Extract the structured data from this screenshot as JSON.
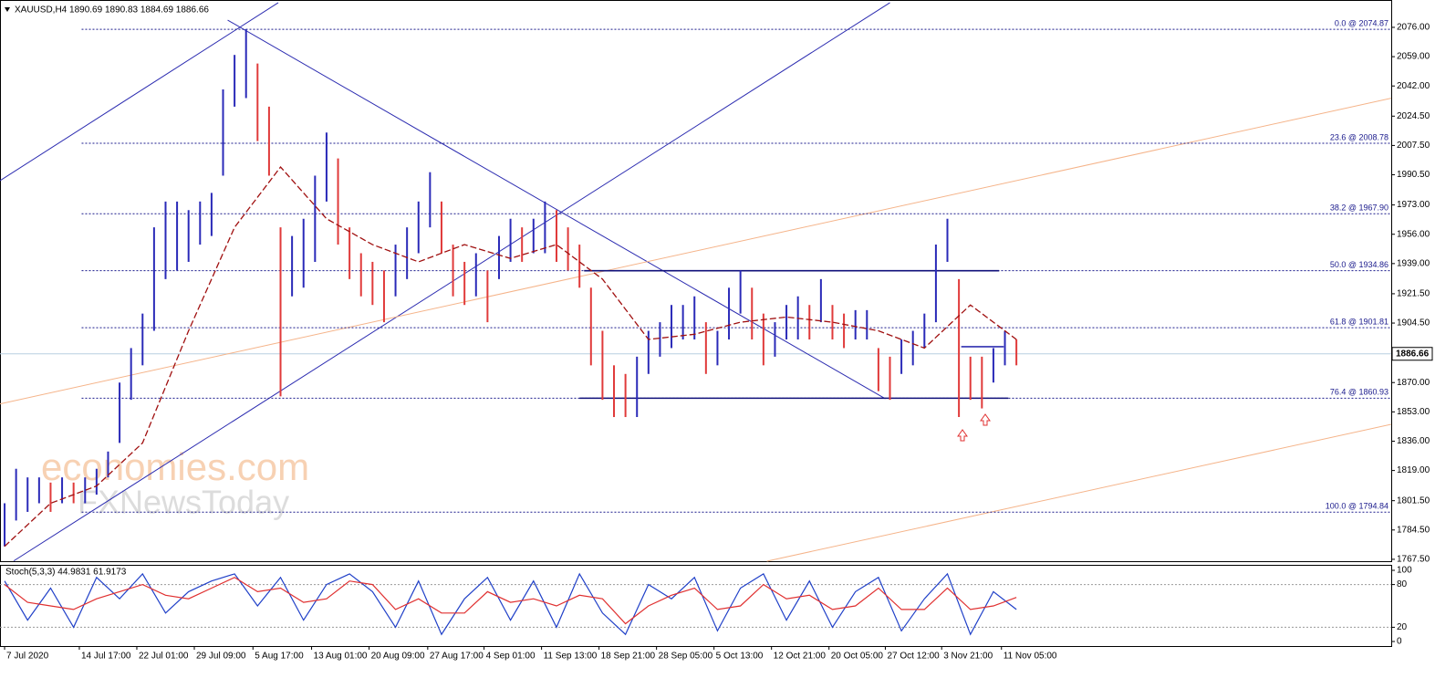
{
  "chart_data": [
    {
      "type": "hilo",
      "header": "XAUUSD,H4  1890.69 1890.83 1884.69 1886.66",
      "watermark": [
        "economies.com",
        "FXNewsToday"
      ],
      "xlim": [
        -0.4,
        120.6
      ],
      "ylim": [
        1766.4,
        2090.8
      ],
      "yticks": [
        {
          "value": 2076,
          "label": "2076.00"
        },
        {
          "value": 2059,
          "label": "2059.00"
        },
        {
          "value": 2042,
          "label": "2042.00"
        },
        {
          "value": 2024.5,
          "label": "2024.50"
        },
        {
          "value": 2007.5,
          "label": "2007.50"
        },
        {
          "value": 1990.5,
          "label": "1990.50"
        },
        {
          "value": 1973,
          "label": "1973.00"
        },
        {
          "value": 1956,
          "label": "1956.00"
        },
        {
          "value": 1939,
          "label": "1939.00"
        },
        {
          "value": 1921.5,
          "label": "1921.50"
        },
        {
          "value": 1904.5,
          "label": "1904.50"
        },
        {
          "value": 1870,
          "label": "1870.00"
        },
        {
          "value": 1853,
          "label": "1853.00"
        },
        {
          "value": 1836,
          "label": "1836.00"
        },
        {
          "value": 1819,
          "label": "1819.00"
        },
        {
          "value": 1801.5,
          "label": "1801.50"
        },
        {
          "value": 1784.5,
          "label": "1784.50"
        },
        {
          "value": 1767.5,
          "label": "1767.50"
        }
      ],
      "xticks": [
        {
          "value": 0,
          "label": "7 Jul 2020"
        },
        {
          "value": 6.5,
          "label": "14 Jul 17:00"
        },
        {
          "value": 11.5,
          "label": "22 Jul 01:00"
        },
        {
          "value": 16.5,
          "label": "29 Jul 09:00"
        },
        {
          "value": 21.6,
          "label": "5 Aug 17:00"
        },
        {
          "value": 26.7,
          "label": "13 Aug 01:00"
        },
        {
          "value": 31.7,
          "label": "20 Aug 09:00"
        },
        {
          "value": 36.8,
          "label": "27 Aug 17:00"
        },
        {
          "value": 41.7,
          "label": "4 Sep 01:00"
        },
        {
          "value": 46.7,
          "label": "11 Sep 13:00"
        },
        {
          "value": 51.7,
          "label": "18 Sep 21:00"
        },
        {
          "value": 56.7,
          "label": "28 Sep 05:00"
        },
        {
          "value": 61.7,
          "label": "5 Oct 13:00"
        },
        {
          "value": 66.7,
          "label": "12 Oct 21:00"
        },
        {
          "value": 71.7,
          "label": "20 Oct 05:00"
        },
        {
          "value": 76.6,
          "label": "27 Oct 12:00"
        },
        {
          "value": 81.5,
          "label": "3 Nov 21:00"
        },
        {
          "value": 86.7,
          "label": "11 Nov 05:00"
        }
      ],
      "up_color": "#2a2ab8",
      "down_color": "#e03a3a",
      "high": [
        1800,
        1820,
        1815,
        1815,
        1812,
        1815,
        1812,
        1815,
        1820,
        1830,
        1870,
        1890,
        1910,
        1960,
        1975,
        1975,
        1970,
        1975,
        1980,
        2040,
        2060,
        2075,
        2055,
        2030,
        1960,
        1955,
        1965,
        1990,
        2015,
        2000,
        1960,
        1945,
        1940,
        1935,
        1950,
        1960,
        1975,
        1992,
        1975,
        1950,
        1940,
        1945,
        1935,
        1955,
        1965,
        1960,
        1965,
        1975,
        1970,
        1960,
        1950,
        1925,
        1900,
        1880,
        1875,
        1885,
        1900,
        1905,
        1915,
        1915,
        1920,
        1905,
        1900,
        1925,
        1935,
        1925,
        1910,
        1905,
        1915,
        1920,
        1915,
        1930,
        1915,
        1910,
        1912,
        1912,
        1890,
        1885,
        1895,
        1900,
        1910,
        1950,
        1965,
        1930,
        1885,
        1885,
        1890,
        1900,
        1895
      ],
      "low": [
        1775,
        1790,
        1795,
        1800,
        1795,
        1800,
        1800,
        1800,
        1805,
        1815,
        1835,
        1860,
        1880,
        1900,
        1930,
        1935,
        1940,
        1950,
        1955,
        1990,
        2030,
        2035,
        2010,
        1990,
        1862,
        1920,
        1925,
        1940,
        1975,
        1950,
        1930,
        1920,
        1915,
        1905,
        1920,
        1930,
        1945,
        1960,
        1945,
        1920,
        1915,
        1920,
        1905,
        1930,
        1940,
        1940,
        1945,
        1945,
        1940,
        1935,
        1925,
        1880,
        1860,
        1850,
        1850,
        1850,
        1875,
        1885,
        1890,
        1895,
        1895,
        1875,
        1880,
        1895,
        1910,
        1895,
        1880,
        1885,
        1895,
        1895,
        1895,
        1905,
        1895,
        1890,
        1895,
        1895,
        1865,
        1860,
        1875,
        1880,
        1890,
        1905,
        1940,
        1850,
        1860,
        1855,
        1870,
        1880,
        1880
      ],
      "ma_color": "#a01010",
      "ma_x": [
        0,
        4,
        8,
        12,
        16,
        20,
        24,
        28,
        32,
        36,
        40,
        44,
        48,
        52,
        56,
        60,
        64,
        68,
        72,
        76,
        80,
        84,
        88
      ],
      "ma_values": [
        1775,
        1800,
        1810,
        1835,
        1900,
        1960,
        1995,
        1965,
        1950,
        1940,
        1950,
        1942,
        1950,
        1930,
        1895,
        1898,
        1905,
        1908,
        1905,
        1900,
        1890,
        1915,
        1895
      ],
      "fib_color": "#1a1a8c",
      "fib_x_start": 6.7,
      "fib_levels": [
        {
          "value": 2074.87,
          "label": "0.0 @ 2074.87"
        },
        {
          "value": 2008.78,
          "label": "23.6 @ 2008.78"
        },
        {
          "value": 1967.9,
          "label": "38.2 @ 1967.90"
        },
        {
          "value": 1934.86,
          "label": "50.0 @ 1934.86"
        },
        {
          "value": 1901.81,
          "label": "61.8 @ 1901.81"
        },
        {
          "value": 1860.93,
          "label": "76.4 @ 1860.93"
        },
        {
          "value": 1794.84,
          "label": "100.0 @ 1794.84"
        }
      ],
      "trendlines": [
        {
          "color": "#2b2bb0",
          "x": [
            -0.4,
            23.8
          ],
          "y": [
            1987.1,
            2090.3
          ]
        },
        {
          "color": "#2b2bb0",
          "x": [
            0.8,
            77
          ],
          "y": [
            1766.6,
            2090.3
          ]
        },
        {
          "color": "#2b2bb0",
          "x": [
            19.4,
            76.6
          ],
          "y": [
            2080.2,
            1860.6
          ]
        },
        {
          "color": "#f5b48a",
          "x": [
            -0.4,
            120.6
          ],
          "y": [
            1857.6,
            2034.9
          ]
        },
        {
          "color": "#f5b48a",
          "x": [
            66.3,
            120.6
          ],
          "y": [
            1766.4,
            1845.8
          ]
        }
      ],
      "levels": [
        {
          "color": "#10107a",
          "value": 1934.86,
          "x": [
            50.4,
            86.5
          ]
        },
        {
          "color": "#10107a",
          "value": 1860.93,
          "x": [
            50,
            87.3
          ]
        },
        {
          "color": "#3030b0",
          "value": 1890.8,
          "x": [
            83.2,
            86.9
          ]
        }
      ],
      "current": {
        "value": 1886.66,
        "label": "1886.66"
      }
    },
    {
      "type": "stoch",
      "label": "Stoch(5,3,3) 44.9831 61.9173",
      "xlim": [
        -0.4,
        120.6
      ],
      "ylim": [
        -6.4,
        106.4
      ],
      "yticks": [
        100,
        80,
        20,
        0
      ],
      "levels": [
        80,
        20
      ],
      "x": [
        0,
        2,
        4,
        6,
        8,
        10,
        12,
        14,
        16,
        18,
        20,
        22,
        24,
        26,
        28,
        30,
        32,
        34,
        36,
        38,
        40,
        42,
        44,
        46,
        48,
        50,
        52,
        54,
        56,
        58,
        60,
        62,
        64,
        66,
        68,
        70,
        72,
        74,
        76,
        78,
        80,
        82,
        84,
        86,
        88
      ],
      "series": [
        {
          "color": "#2040c8",
          "values": [
            85,
            30,
            75,
            20,
            90,
            60,
            95,
            40,
            70,
            85,
            95,
            50,
            90,
            30,
            80,
            95,
            70,
            20,
            85,
            10,
            60,
            90,
            30,
            85,
            20,
            95,
            40,
            10,
            80,
            60,
            90,
            15,
            75,
            95,
            30,
            85,
            20,
            70,
            90,
            15,
            60,
            95,
            10,
            70,
            45
          ]
        },
        {
          "color": "#e03030",
          "values": [
            80,
            55,
            50,
            45,
            60,
            70,
            80,
            65,
            60,
            75,
            90,
            70,
            75,
            55,
            60,
            85,
            80,
            45,
            60,
            40,
            40,
            70,
            55,
            60,
            50,
            65,
            60,
            25,
            50,
            65,
            75,
            45,
            50,
            80,
            60,
            65,
            45,
            50,
            75,
            45,
            45,
            75,
            45,
            50,
            62
          ]
        }
      ]
    }
  ]
}
